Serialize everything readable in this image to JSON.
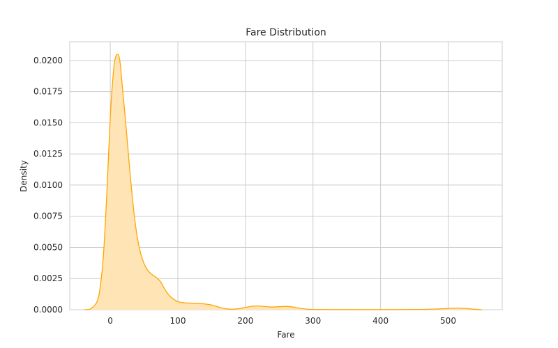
{
  "chart_data": {
    "type": "area",
    "title": "Fare Distribution",
    "xlabel": "Fare",
    "ylabel": "Density",
    "xlim": [
      -60,
      580
    ],
    "ylim": [
      0,
      0.0215
    ],
    "xticks": [
      0,
      100,
      200,
      300,
      400,
      500
    ],
    "xtick_labels": [
      "0",
      "100",
      "200",
      "300",
      "400",
      "500"
    ],
    "yticks": [
      0.0,
      0.0025,
      0.005,
      0.0075,
      0.01,
      0.0125,
      0.015,
      0.0175,
      0.02
    ],
    "ytick_labels": [
      "0.0000",
      "0.0025",
      "0.0050",
      "0.0075",
      "0.0100",
      "0.0125",
      "0.0150",
      "0.0175",
      "0.0200"
    ],
    "grid": true,
    "line_color": "#FFA500",
    "fill_color": "#FFE4B5",
    "series": [
      {
        "x": [
          -38,
          -30,
          -20,
          -15,
          -10,
          -5,
          0,
          5,
          8,
          11,
          13,
          15,
          18,
          22,
          26,
          30,
          35,
          40,
          45,
          50,
          55,
          60,
          65,
          70,
          75,
          80,
          85,
          90,
          95,
          100,
          105,
          110,
          120,
          130,
          140,
          150,
          160,
          170,
          180,
          190,
          200,
          210,
          220,
          230,
          240,
          250,
          260,
          270,
          280,
          290,
          300,
          350,
          400,
          450,
          480,
          500,
          510,
          520,
          530,
          540,
          550
        ],
        "y": [
          0.0,
          5e-05,
          0.0006,
          0.0018,
          0.0045,
          0.0095,
          0.0155,
          0.0193,
          0.0203,
          0.0205,
          0.0203,
          0.0196,
          0.0178,
          0.0155,
          0.013,
          0.0105,
          0.0078,
          0.0058,
          0.0045,
          0.0037,
          0.0032,
          0.0029,
          0.0027,
          0.0025,
          0.0022,
          0.0017,
          0.0013,
          0.001,
          0.0008,
          0.00065,
          0.00058,
          0.00055,
          0.00053,
          0.0005,
          0.00046,
          0.00038,
          0.00022,
          8e-05,
          4e-05,
          8e-05,
          0.00018,
          0.00028,
          0.0003,
          0.00025,
          0.00022,
          0.00024,
          0.00027,
          0.00022,
          0.00012,
          5e-05,
          2e-05,
          1e-05,
          1e-05,
          2e-05,
          5e-05,
          0.0001,
          0.00013,
          0.00012,
          8e-05,
          3e-05,
          0.0
        ]
      }
    ]
  }
}
